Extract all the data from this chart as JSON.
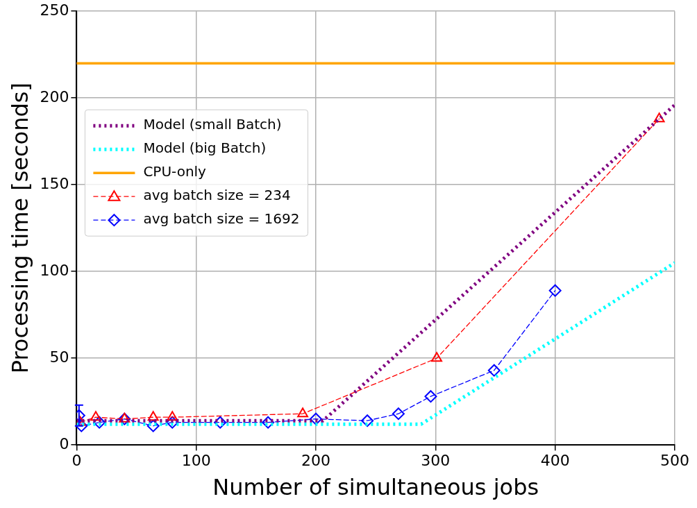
{
  "chart_data": {
    "type": "line",
    "xlabel": "Number of simultaneous jobs",
    "ylabel": "Processing time [seconds]",
    "xlim": [
      0,
      500
    ],
    "xticks": [
      0,
      100,
      200,
      300,
      400,
      500
    ],
    "ylim": [
      0,
      250
    ],
    "yticks": [
      0,
      50,
      100,
      150,
      200,
      250
    ],
    "grid": true,
    "legend": "top left",
    "series": [
      {
        "name": "Model (small Batch)",
        "color": "#800080",
        "line_style": "dotted",
        "marker": "none",
        "x": [
          0,
          206,
          500
        ],
        "values": [
          14,
          14,
          196
        ]
      },
      {
        "name": "Model (big Batch)",
        "color": "#00ffff",
        "line_style": "dotted",
        "marker": "none",
        "x": [
          0,
          288,
          500
        ],
        "values": [
          12,
          12,
          105
        ]
      },
      {
        "name": "CPU-only",
        "color": "#ffa500",
        "line_style": "solid",
        "marker": "none",
        "x": [
          0,
          500
        ],
        "values": [
          220,
          220
        ]
      },
      {
        "name": "avg batch size = 234",
        "color": "#ff0000",
        "line_style": "dashed",
        "marker": "triangle",
        "x": [
          3,
          16,
          40,
          64,
          80,
          189,
          301,
          487
        ],
        "values": [
          13,
          16,
          15,
          16,
          16,
          18,
          50,
          188
        ]
      },
      {
        "name": "avg batch size = 1692",
        "color": "#0000ff",
        "line_style": "dashed",
        "marker": "diamond",
        "x": [
          2,
          4,
          19,
          40,
          64,
          80,
          120,
          160,
          200,
          243,
          269,
          296,
          349,
          400
        ],
        "values": [
          17,
          11,
          13,
          15,
          11,
          13,
          13,
          13,
          15,
          14,
          18,
          28,
          43,
          89
        ],
        "errors": [
          6,
          null,
          null,
          null,
          null,
          null,
          null,
          null,
          null,
          null,
          null,
          null,
          null,
          null
        ]
      }
    ]
  }
}
